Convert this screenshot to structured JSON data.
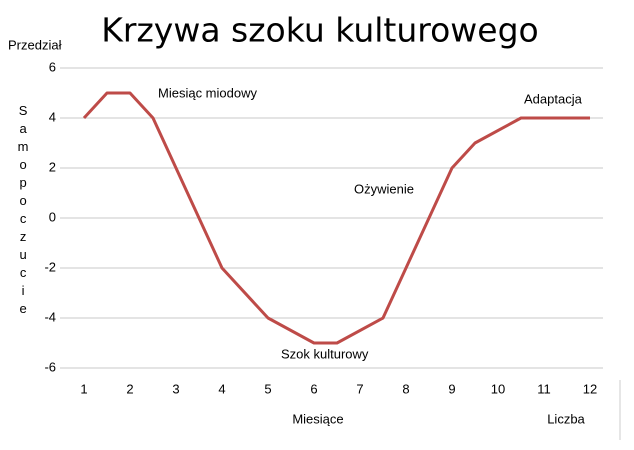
{
  "chart_data": {
    "type": "line",
    "title": "Krzywa szoku kulturowego",
    "ytitle_top": "Przedział",
    "ylabel": "Samopoczucie",
    "xlabel": "Miesiące",
    "xlabel_right": "Liczba",
    "x": [
      1,
      1.5,
      2,
      2.5,
      4,
      5,
      6,
      6.5,
      7.5,
      9,
      9.5,
      10.5,
      12
    ],
    "series": [
      {
        "color": "#be4b48",
        "values": [
          4,
          5,
          5,
          4,
          -2,
          -4,
          -5,
          -5,
          -4,
          2,
          3,
          4,
          4
        ]
      }
    ],
    "xlim": [
      0.5,
      12.5
    ],
    "xticks": [
      1,
      2,
      3,
      4,
      5,
      6,
      7,
      8,
      9,
      10,
      11,
      12
    ],
    "ylim": [
      -6,
      6
    ],
    "yticks": [
      -6,
      -4,
      -2,
      0,
      2,
      4,
      6
    ],
    "grid": true,
    "annotations": [
      "Miesiąc miodowy",
      "Ożywienie",
      "Szok kulturowy",
      "Adaptacja"
    ]
  }
}
